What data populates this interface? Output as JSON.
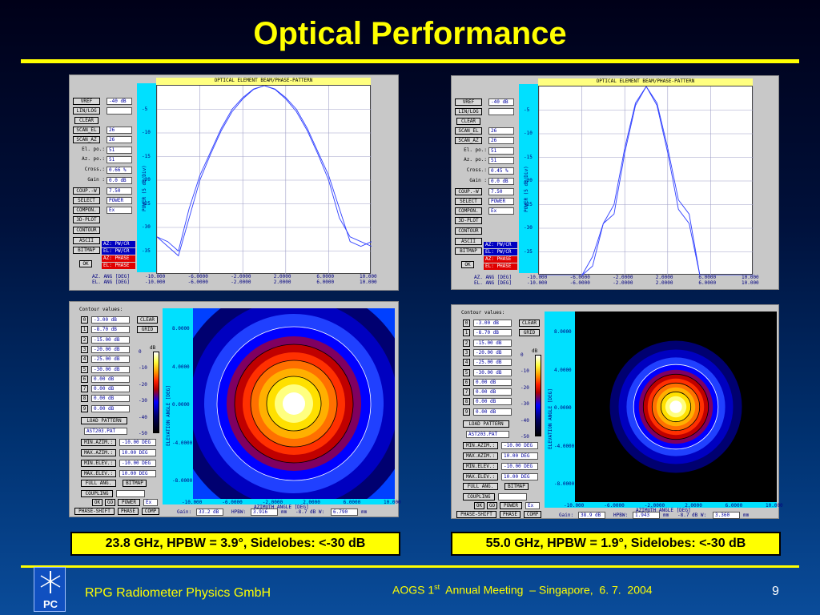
{
  "slide": {
    "title": "Optical Performance",
    "page_number": "9",
    "company": "RPG Radiometer Physics GmbH",
    "meeting_prefix": "AOGS 1",
    "meeting_sup": "st",
    "meeting_rest": "  Annual Meeting  – Singapore,  6. 7.  2004",
    "colors": {
      "title": "#ffff00",
      "caption_bg": "#ffff00",
      "background_top": "#000018",
      "background_bottom": "#0a4c9a"
    }
  },
  "captions": {
    "left": "23.8 GHz, HPBW = 3.9°, Sidelobes: <-30 dB",
    "right": "55.0 GHz, HPBW = 1.9°, Sidelobes: <-30 dB"
  },
  "beam_controls": {
    "vref": "VREF",
    "vref_value": "-40 dB",
    "linlog": "LIN/LOG",
    "clear": "CLEAR",
    "scan_el": "SCAN_EL",
    "scan_az": "SCAN_AZ",
    "el_po": "El. po.:",
    "az_po": "Az. po.:",
    "cross": "Cross.:",
    "gain": "Gain  :",
    "coup": "COUP.-W",
    "select": "SELECT",
    "compon": "COMPON.",
    "plot3d": "3D-PLOT",
    "contour": "CONTOUR",
    "ascii": "ASCII",
    "bitmap": "BITMAP",
    "ok": "OK",
    "power": "POWER",
    "ex": "Ex",
    "az_pwcr": "AZ: PW/CR",
    "el_pwcr": "EL: PW/CR",
    "az_phase": "AZ: PHASE",
    "el_phase": "EL: PHASE",
    "scan_value": "26",
    "po_value": "51",
    "gain_value": "0.0  dB",
    "coup_value": "7.50",
    "az_axis_label": "AZ. ANG [DEG]",
    "el_axis_label": "EL. ANG [DEG]"
  },
  "contour_controls": {
    "title": "Contour values:",
    "levels": [
      "-3.00 dB",
      "-8.70 dB",
      "-15.00 dB",
      "-20.00 dB",
      "-25.00 dB",
      "-30.00 dB",
      "0.00 dB",
      "0.00 dB",
      "0.00 dB",
      "0.00 dB"
    ],
    "level_indices": [
      "0",
      "1",
      "2",
      "3",
      "4",
      "5",
      "6",
      "7",
      "8",
      "9"
    ],
    "clear": "CLEAR",
    "grid": "GRID",
    "load_pattern": "LOAD PATTERN",
    "pattern_file": "AST203.PAT",
    "min_azim": "MIN.AZIM.:",
    "max_azim": "MAX.AZIM.:",
    "min_elev": "MIN.ELEV.:",
    "max_elev": "MAX.ELEV.:",
    "min_azim_value": "-10.00 DEG",
    "max_azim_value": "10.00  DEG",
    "min_elev_value": "-10.00 DEG",
    "max_elev_value": "10.00  DEG",
    "full_ang": "FULL ANG.",
    "bitmap": "BITMAP",
    "coupling": "COUPLING",
    "ok": "OK",
    "go": "GO",
    "power": "POWER",
    "ex": "Ex",
    "phase_shift": "PHASE-SHIFT",
    "phase": "PHASE",
    "comp": "COMP",
    "cbar_unit": "dB",
    "cbar_ticks": [
      "0",
      "-10",
      "-20",
      "-30",
      "-40",
      "-50"
    ],
    "gain_label": "Gain:",
    "hpbw_label": "HPBW:",
    "w_label": "-8.7 dB W:",
    "unit_mm": "mm",
    "x_axis_label": "AZIMUTH ANGLE [DEG]",
    "y_axis_label": "ELEVATION ANGLE [DEG]",
    "y_ticks": [
      "8.0000",
      "4.0000",
      "0.0000",
      "-4.0000",
      "-8.0000"
    ]
  },
  "beam_plots": [
    {
      "title": "OPTICAL ELEMENT BEAM/PHASE-PATTERN",
      "cross_value": "0.66 %",
      "y_axis_label": "POWER (5 dB/Div)",
      "y_ticks": [
        "-5",
        "-10",
        "-15",
        "-20",
        "-25",
        "-30",
        "-35"
      ],
      "x_ticks_az": [
        "-10.000",
        "-6.0000",
        "-2.0000",
        "2.0000",
        "6.0000",
        "10.000"
      ],
      "x_ticks_el": [
        "-10.000",
        "-6.0000",
        "-2.0000",
        "2.0000",
        "6.0000",
        "10.000"
      ],
      "chart_data": {
        "type": "line",
        "x": [
          -10,
          -9,
          -8,
          -7,
          -6,
          -5,
          -4,
          -3,
          -2,
          -1,
          0,
          1,
          2,
          3,
          4,
          5,
          6,
          7,
          8,
          9,
          10
        ],
        "ylim": [
          -40,
          0
        ],
        "series": [
          {
            "values": [
              -32,
              -33,
              -35,
              -26,
              -19,
              -14,
              -9,
              -5,
              -2.5,
              -0.7,
              0,
              -0.7,
              -2.5,
              -5,
              -9,
              -14,
              -19,
              -26,
              -33,
              -34,
              -33
            ]
          },
          {
            "values": [
              -32,
              -34,
              -36,
              -28,
              -20,
              -14.5,
              -9.5,
              -5.5,
              -2.8,
              -0.8,
              0,
              -0.8,
              -2.8,
              -5.5,
              -9.5,
              -14.5,
              -20,
              -28,
              -32,
              -33,
              -34
            ]
          }
        ]
      }
    },
    {
      "title": "OPTICAL ELEMENT BEAM/PHASE-PATTERN",
      "cross_value": "0.45 %",
      "y_axis_label": "POWER (5 dB/Div)",
      "y_ticks": [
        "-5",
        "-10",
        "-15",
        "-20",
        "-25",
        "-30",
        "-35"
      ],
      "x_ticks_az": [
        "-10.000",
        "-6.0000",
        "-2.0000",
        "2.0000",
        "6.0000",
        "10.000"
      ],
      "x_ticks_el": [
        "-10.000",
        "-6.0000",
        "-2.0000",
        "2.0000",
        "6.0000",
        "10.000"
      ],
      "chart_data": {
        "type": "line",
        "x": [
          -10,
          -9,
          -8,
          -7,
          -6,
          -5,
          -4,
          -3,
          -2,
          -1,
          0,
          1,
          2,
          3,
          4,
          5,
          6,
          7,
          8,
          9,
          10
        ],
        "ylim": [
          -40,
          0
        ],
        "series": [
          {
            "values": [
              -40,
              -40,
              -40,
              -40,
              -40,
              -36,
              -29,
              -27,
              -14,
              -4,
              0,
              -4,
              -14,
              -26,
              -29,
              -40,
              -40,
              -40,
              -40,
              -40,
              -40
            ]
          },
          {
            "values": [
              -40,
              -40,
              -40,
              -40,
              -40,
              -38,
              -29,
              -25,
              -13,
              -3.5,
              0,
              -3.5,
              -13,
              -24,
              -27,
              -40,
              -40,
              -40,
              -40,
              -40,
              -40
            ]
          }
        ]
      }
    }
  ],
  "contour_plots": [
    {
      "gain_value": "33.2 dB",
      "hpbw_value": "3.916",
      "w_value": "6.790",
      "x_ticks": [
        "-10.000",
        "-6.0000",
        "-2.0000",
        "2.0000",
        "6.0000",
        "10.000"
      ],
      "beam_scale": 1.0
    },
    {
      "gain_value": "38.9 dB",
      "hpbw_value": "1.943",
      "w_value": "3.360",
      "x_ticks": [
        "-10.000",
        "-6.0000",
        "-2.0000",
        "2.0000",
        "6.0000",
        "10.000"
      ],
      "beam_scale": 0.55
    }
  ]
}
